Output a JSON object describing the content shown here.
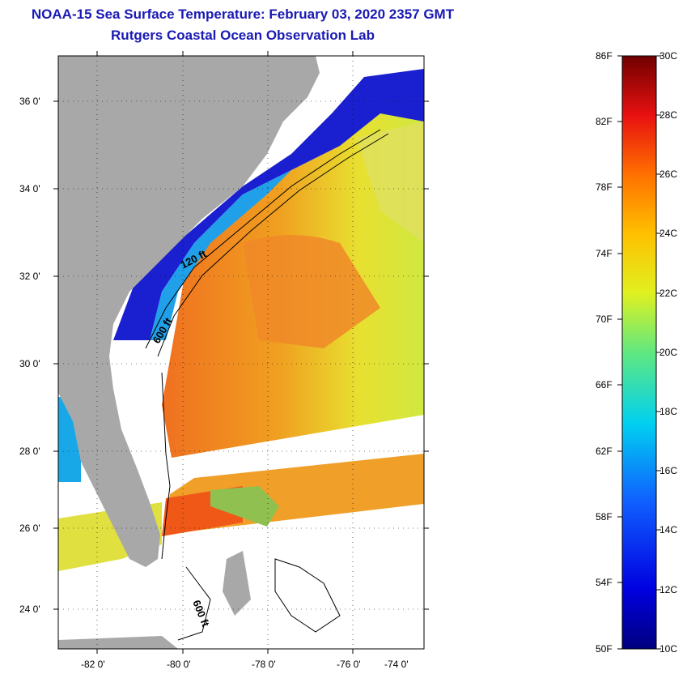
{
  "title": {
    "line1": "NOAA-15 Sea Surface Temperature:  February 03, 2020 2357 GMT",
    "line2": "Rutgers Coastal Ocean Observation Lab"
  },
  "map": {
    "lat_labels": [
      "36 0'",
      "34 0'",
      "32 0'",
      "30 0'",
      "28 0'",
      "26 0'",
      "24 0'"
    ],
    "lon_labels": [
      "-82 0'",
      "-80 0'",
      "-78 0'",
      "-76 0'",
      "-74 0'"
    ],
    "contours": [
      "120 ft",
      "600 ft",
      "600 ft"
    ],
    "colors": {
      "land": "#a8a8a8",
      "cold": "#1010c8",
      "cool": "#18a0e8",
      "mid": "#e8e020",
      "warm": "#f07820",
      "hot": "#f05010"
    }
  },
  "colorbar": {
    "fahrenheit": [
      "86F",
      "82F",
      "78F",
      "74F",
      "70F",
      "66F",
      "62F",
      "58F",
      "54F",
      "50F"
    ],
    "celsius": [
      "30C",
      "28C",
      "26C",
      "24C",
      "22C",
      "20C",
      "18C",
      "16C",
      "14C",
      "12C",
      "10C"
    ]
  }
}
